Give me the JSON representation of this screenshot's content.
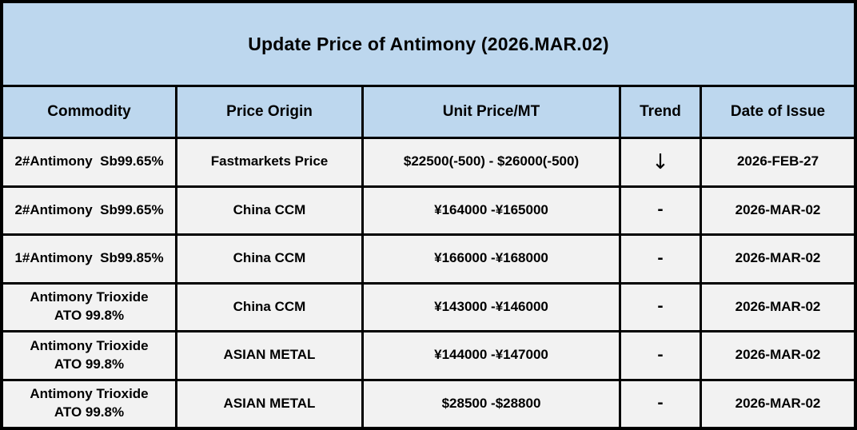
{
  "title": "Update Price of Antimony (2026.MAR.02)",
  "colors": {
    "title_bg": "#BDD7EE",
    "header_bg": "#BDD7EE",
    "row_bg": "#F2F2F2",
    "border": "#000000",
    "text": "#000000"
  },
  "table": {
    "columns": [
      "Commodity",
      "Price Origin",
      "Unit Price/MT",
      "Trend",
      "Date of Issue"
    ],
    "rows": [
      {
        "commodity": "2#Antimony  Sb99.65%",
        "origin": "Fastmarkets Price",
        "unit_price": "$22500(-500) - $26000(-500)",
        "trend": "↓",
        "date": "2026-FEB-27"
      },
      {
        "commodity": "2#Antimony  Sb99.65%",
        "origin": "China CCM",
        "unit_price": "¥164000 -¥165000",
        "trend": "-",
        "date": "2026-MAR-02"
      },
      {
        "commodity": "1#Antimony  Sb99.85%",
        "origin": "China CCM",
        "unit_price": "¥166000 -¥168000",
        "trend": "-",
        "date": "2026-MAR-02"
      },
      {
        "commodity": "Antimony Trioxide\nATO 99.8%",
        "origin": "China CCM",
        "unit_price": "¥143000 -¥146000",
        "trend": "-",
        "date": "2026-MAR-02"
      },
      {
        "commodity": "Antimony Trioxide\nATO 99.8%",
        "origin": "ASIAN METAL",
        "unit_price": "¥144000 -¥147000",
        "trend": "-",
        "date": "2026-MAR-02"
      },
      {
        "commodity": "Antimony Trioxide\nATO 99.8%",
        "origin": "ASIAN METAL",
        "unit_price": "$28500 -$28800",
        "trend": "-",
        "date": "2026-MAR-02"
      }
    ]
  }
}
